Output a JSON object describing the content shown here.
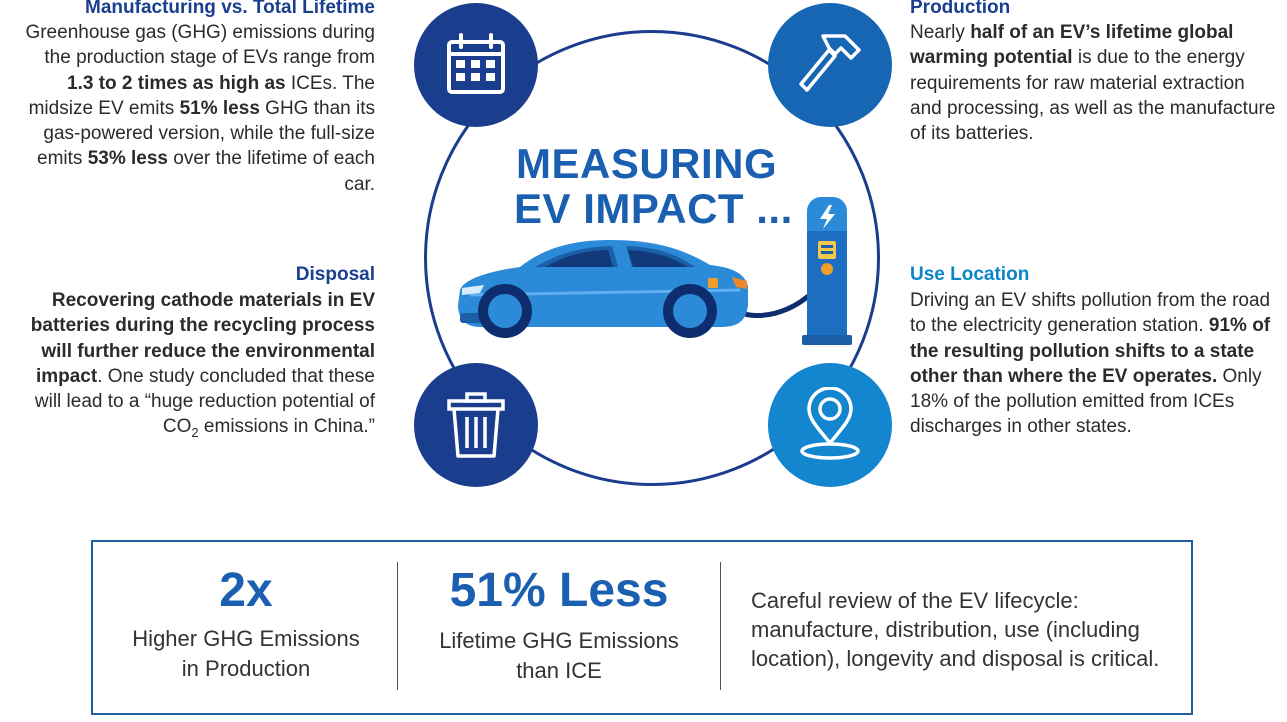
{
  "manufacturing": {
    "heading": "Manufacturing vs. Total Lifetime",
    "text_1": "Greenhouse gas (GHG) emissions during the production stage of EVs range from ",
    "bold_1": "1.3 to 2 times as high as",
    "text_2": " ICEs. The midsize EV emits ",
    "bold_2": "51% less",
    "text_3": " GHG than its gas-powered version, while the full-size emits ",
    "bold_3": "53% less",
    "text_4": " over the lifetime of each car."
  },
  "disposal": {
    "heading": "Disposal",
    "bold_1": "Recovering cathode materials in EV batteries during the recycling process will further reduce the environmental impact",
    "text_1": ". One study concluded that these will lead to a “huge reduction potential of CO",
    "subscript": "2",
    "text_2": " emissions in China.”"
  },
  "production": {
    "heading": "Production",
    "text_1": "Nearly ",
    "bold_1": "half of an EV’s lifetime global warming potential",
    "text_2": " is due to the energy requirements for raw material extraction and processing, as well as the manufacture of its batteries."
  },
  "use_location": {
    "heading": "Use Location",
    "text_1": "Driving an EV shifts pollution from the road to the electricity generation station. ",
    "bold_1": "91% of the resulting pollution shifts to a state other than where the EV operates.",
    "text_2": " Only 18% of the pollution emitted from ICEs discharges in other states."
  },
  "center": {
    "title_line_1": "MEASURING",
    "title_line_2": "EV IMPACT ..."
  },
  "stats": {
    "stat_1_value": "2x",
    "stat_1_label_1": "Higher GHG Emissions",
    "stat_1_label_2": "in Production",
    "stat_2_value": "51% Less",
    "stat_2_label_1": "Lifetime GHG Emissions",
    "stat_2_label_2": "than ICE",
    "summary": "Careful review of the EV lifecycle: manufacture, distribution, use (including location), longevity and disposal is critical."
  },
  "icons": [
    "calendar-icon",
    "hammer-icon",
    "trash-icon",
    "location-pin-icon",
    "car-illustration",
    "charger-icon"
  ],
  "colors": {
    "navy": "#1b3d8e",
    "blue": "#1766b3",
    "sky": "#1386cf",
    "title": "#1a5fb0",
    "border": "#1e5f9e"
  }
}
